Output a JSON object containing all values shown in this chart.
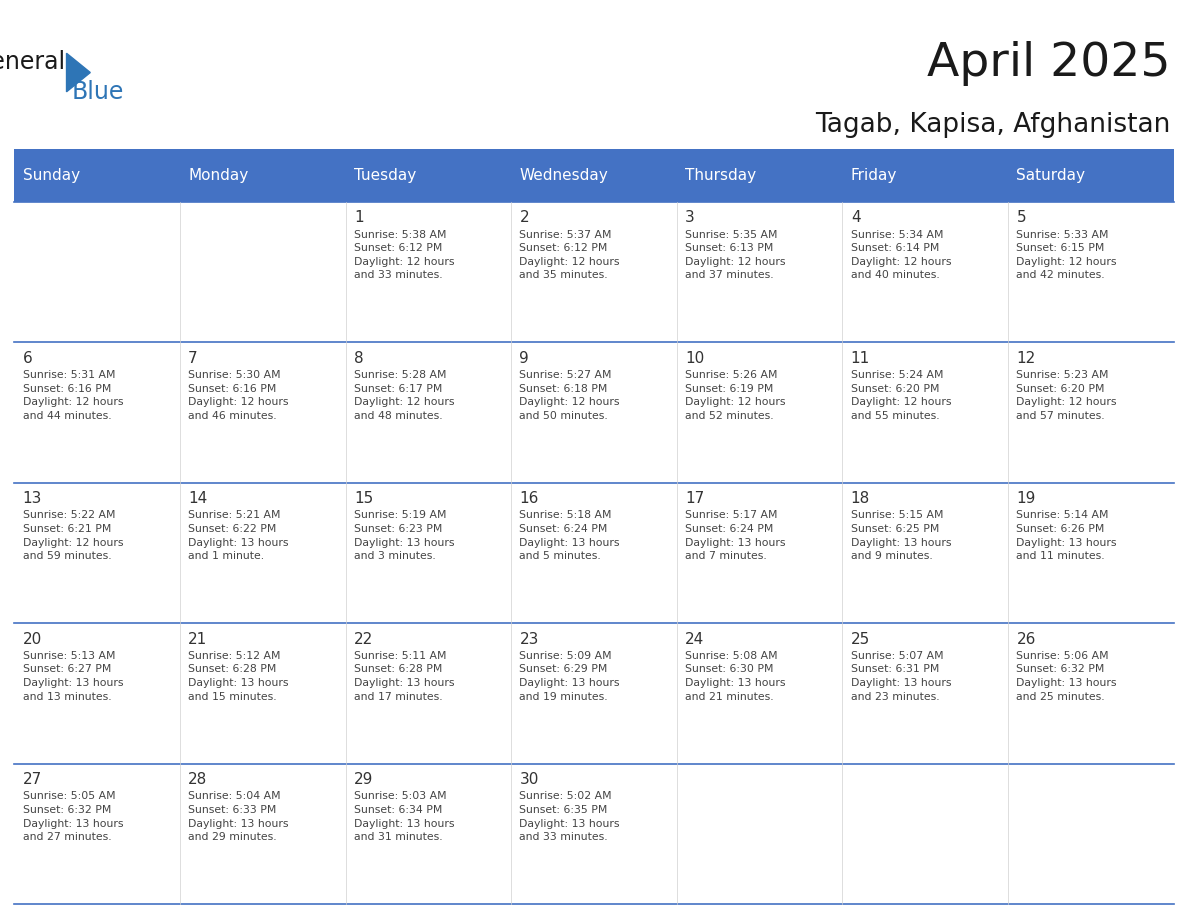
{
  "title": "April 2025",
  "subtitle": "Tagab, Kapisa, Afghanistan",
  "header_color": "#4472C4",
  "header_text_color": "#FFFFFF",
  "cell_bg_color": "#FFFFFF",
  "cell_border_color": "#4472C4",
  "day_number_color": "#333333",
  "cell_text_color": "#444444",
  "days_of_week": [
    "Sunday",
    "Monday",
    "Tuesday",
    "Wednesday",
    "Thursday",
    "Friday",
    "Saturday"
  ],
  "weeks": [
    [
      {
        "day": "",
        "info": ""
      },
      {
        "day": "",
        "info": ""
      },
      {
        "day": "1",
        "info": "Sunrise: 5:38 AM\nSunset: 6:12 PM\nDaylight: 12 hours\nand 33 minutes."
      },
      {
        "day": "2",
        "info": "Sunrise: 5:37 AM\nSunset: 6:12 PM\nDaylight: 12 hours\nand 35 minutes."
      },
      {
        "day": "3",
        "info": "Sunrise: 5:35 AM\nSunset: 6:13 PM\nDaylight: 12 hours\nand 37 minutes."
      },
      {
        "day": "4",
        "info": "Sunrise: 5:34 AM\nSunset: 6:14 PM\nDaylight: 12 hours\nand 40 minutes."
      },
      {
        "day": "5",
        "info": "Sunrise: 5:33 AM\nSunset: 6:15 PM\nDaylight: 12 hours\nand 42 minutes."
      }
    ],
    [
      {
        "day": "6",
        "info": "Sunrise: 5:31 AM\nSunset: 6:16 PM\nDaylight: 12 hours\nand 44 minutes."
      },
      {
        "day": "7",
        "info": "Sunrise: 5:30 AM\nSunset: 6:16 PM\nDaylight: 12 hours\nand 46 minutes."
      },
      {
        "day": "8",
        "info": "Sunrise: 5:28 AM\nSunset: 6:17 PM\nDaylight: 12 hours\nand 48 minutes."
      },
      {
        "day": "9",
        "info": "Sunrise: 5:27 AM\nSunset: 6:18 PM\nDaylight: 12 hours\nand 50 minutes."
      },
      {
        "day": "10",
        "info": "Sunrise: 5:26 AM\nSunset: 6:19 PM\nDaylight: 12 hours\nand 52 minutes."
      },
      {
        "day": "11",
        "info": "Sunrise: 5:24 AM\nSunset: 6:20 PM\nDaylight: 12 hours\nand 55 minutes."
      },
      {
        "day": "12",
        "info": "Sunrise: 5:23 AM\nSunset: 6:20 PM\nDaylight: 12 hours\nand 57 minutes."
      }
    ],
    [
      {
        "day": "13",
        "info": "Sunrise: 5:22 AM\nSunset: 6:21 PM\nDaylight: 12 hours\nand 59 minutes."
      },
      {
        "day": "14",
        "info": "Sunrise: 5:21 AM\nSunset: 6:22 PM\nDaylight: 13 hours\nand 1 minute."
      },
      {
        "day": "15",
        "info": "Sunrise: 5:19 AM\nSunset: 6:23 PM\nDaylight: 13 hours\nand 3 minutes."
      },
      {
        "day": "16",
        "info": "Sunrise: 5:18 AM\nSunset: 6:24 PM\nDaylight: 13 hours\nand 5 minutes."
      },
      {
        "day": "17",
        "info": "Sunrise: 5:17 AM\nSunset: 6:24 PM\nDaylight: 13 hours\nand 7 minutes."
      },
      {
        "day": "18",
        "info": "Sunrise: 5:15 AM\nSunset: 6:25 PM\nDaylight: 13 hours\nand 9 minutes."
      },
      {
        "day": "19",
        "info": "Sunrise: 5:14 AM\nSunset: 6:26 PM\nDaylight: 13 hours\nand 11 minutes."
      }
    ],
    [
      {
        "day": "20",
        "info": "Sunrise: 5:13 AM\nSunset: 6:27 PM\nDaylight: 13 hours\nand 13 minutes."
      },
      {
        "day": "21",
        "info": "Sunrise: 5:12 AM\nSunset: 6:28 PM\nDaylight: 13 hours\nand 15 minutes."
      },
      {
        "day": "22",
        "info": "Sunrise: 5:11 AM\nSunset: 6:28 PM\nDaylight: 13 hours\nand 17 minutes."
      },
      {
        "day": "23",
        "info": "Sunrise: 5:09 AM\nSunset: 6:29 PM\nDaylight: 13 hours\nand 19 minutes."
      },
      {
        "day": "24",
        "info": "Sunrise: 5:08 AM\nSunset: 6:30 PM\nDaylight: 13 hours\nand 21 minutes."
      },
      {
        "day": "25",
        "info": "Sunrise: 5:07 AM\nSunset: 6:31 PM\nDaylight: 13 hours\nand 23 minutes."
      },
      {
        "day": "26",
        "info": "Sunrise: 5:06 AM\nSunset: 6:32 PM\nDaylight: 13 hours\nand 25 minutes."
      }
    ],
    [
      {
        "day": "27",
        "info": "Sunrise: 5:05 AM\nSunset: 6:32 PM\nDaylight: 13 hours\nand 27 minutes."
      },
      {
        "day": "28",
        "info": "Sunrise: 5:04 AM\nSunset: 6:33 PM\nDaylight: 13 hours\nand 29 minutes."
      },
      {
        "day": "29",
        "info": "Sunrise: 5:03 AM\nSunset: 6:34 PM\nDaylight: 13 hours\nand 31 minutes."
      },
      {
        "day": "30",
        "info": "Sunrise: 5:02 AM\nSunset: 6:35 PM\nDaylight: 13 hours\nand 33 minutes."
      },
      {
        "day": "",
        "info": ""
      },
      {
        "day": "",
        "info": ""
      },
      {
        "day": "",
        "info": ""
      }
    ]
  ]
}
